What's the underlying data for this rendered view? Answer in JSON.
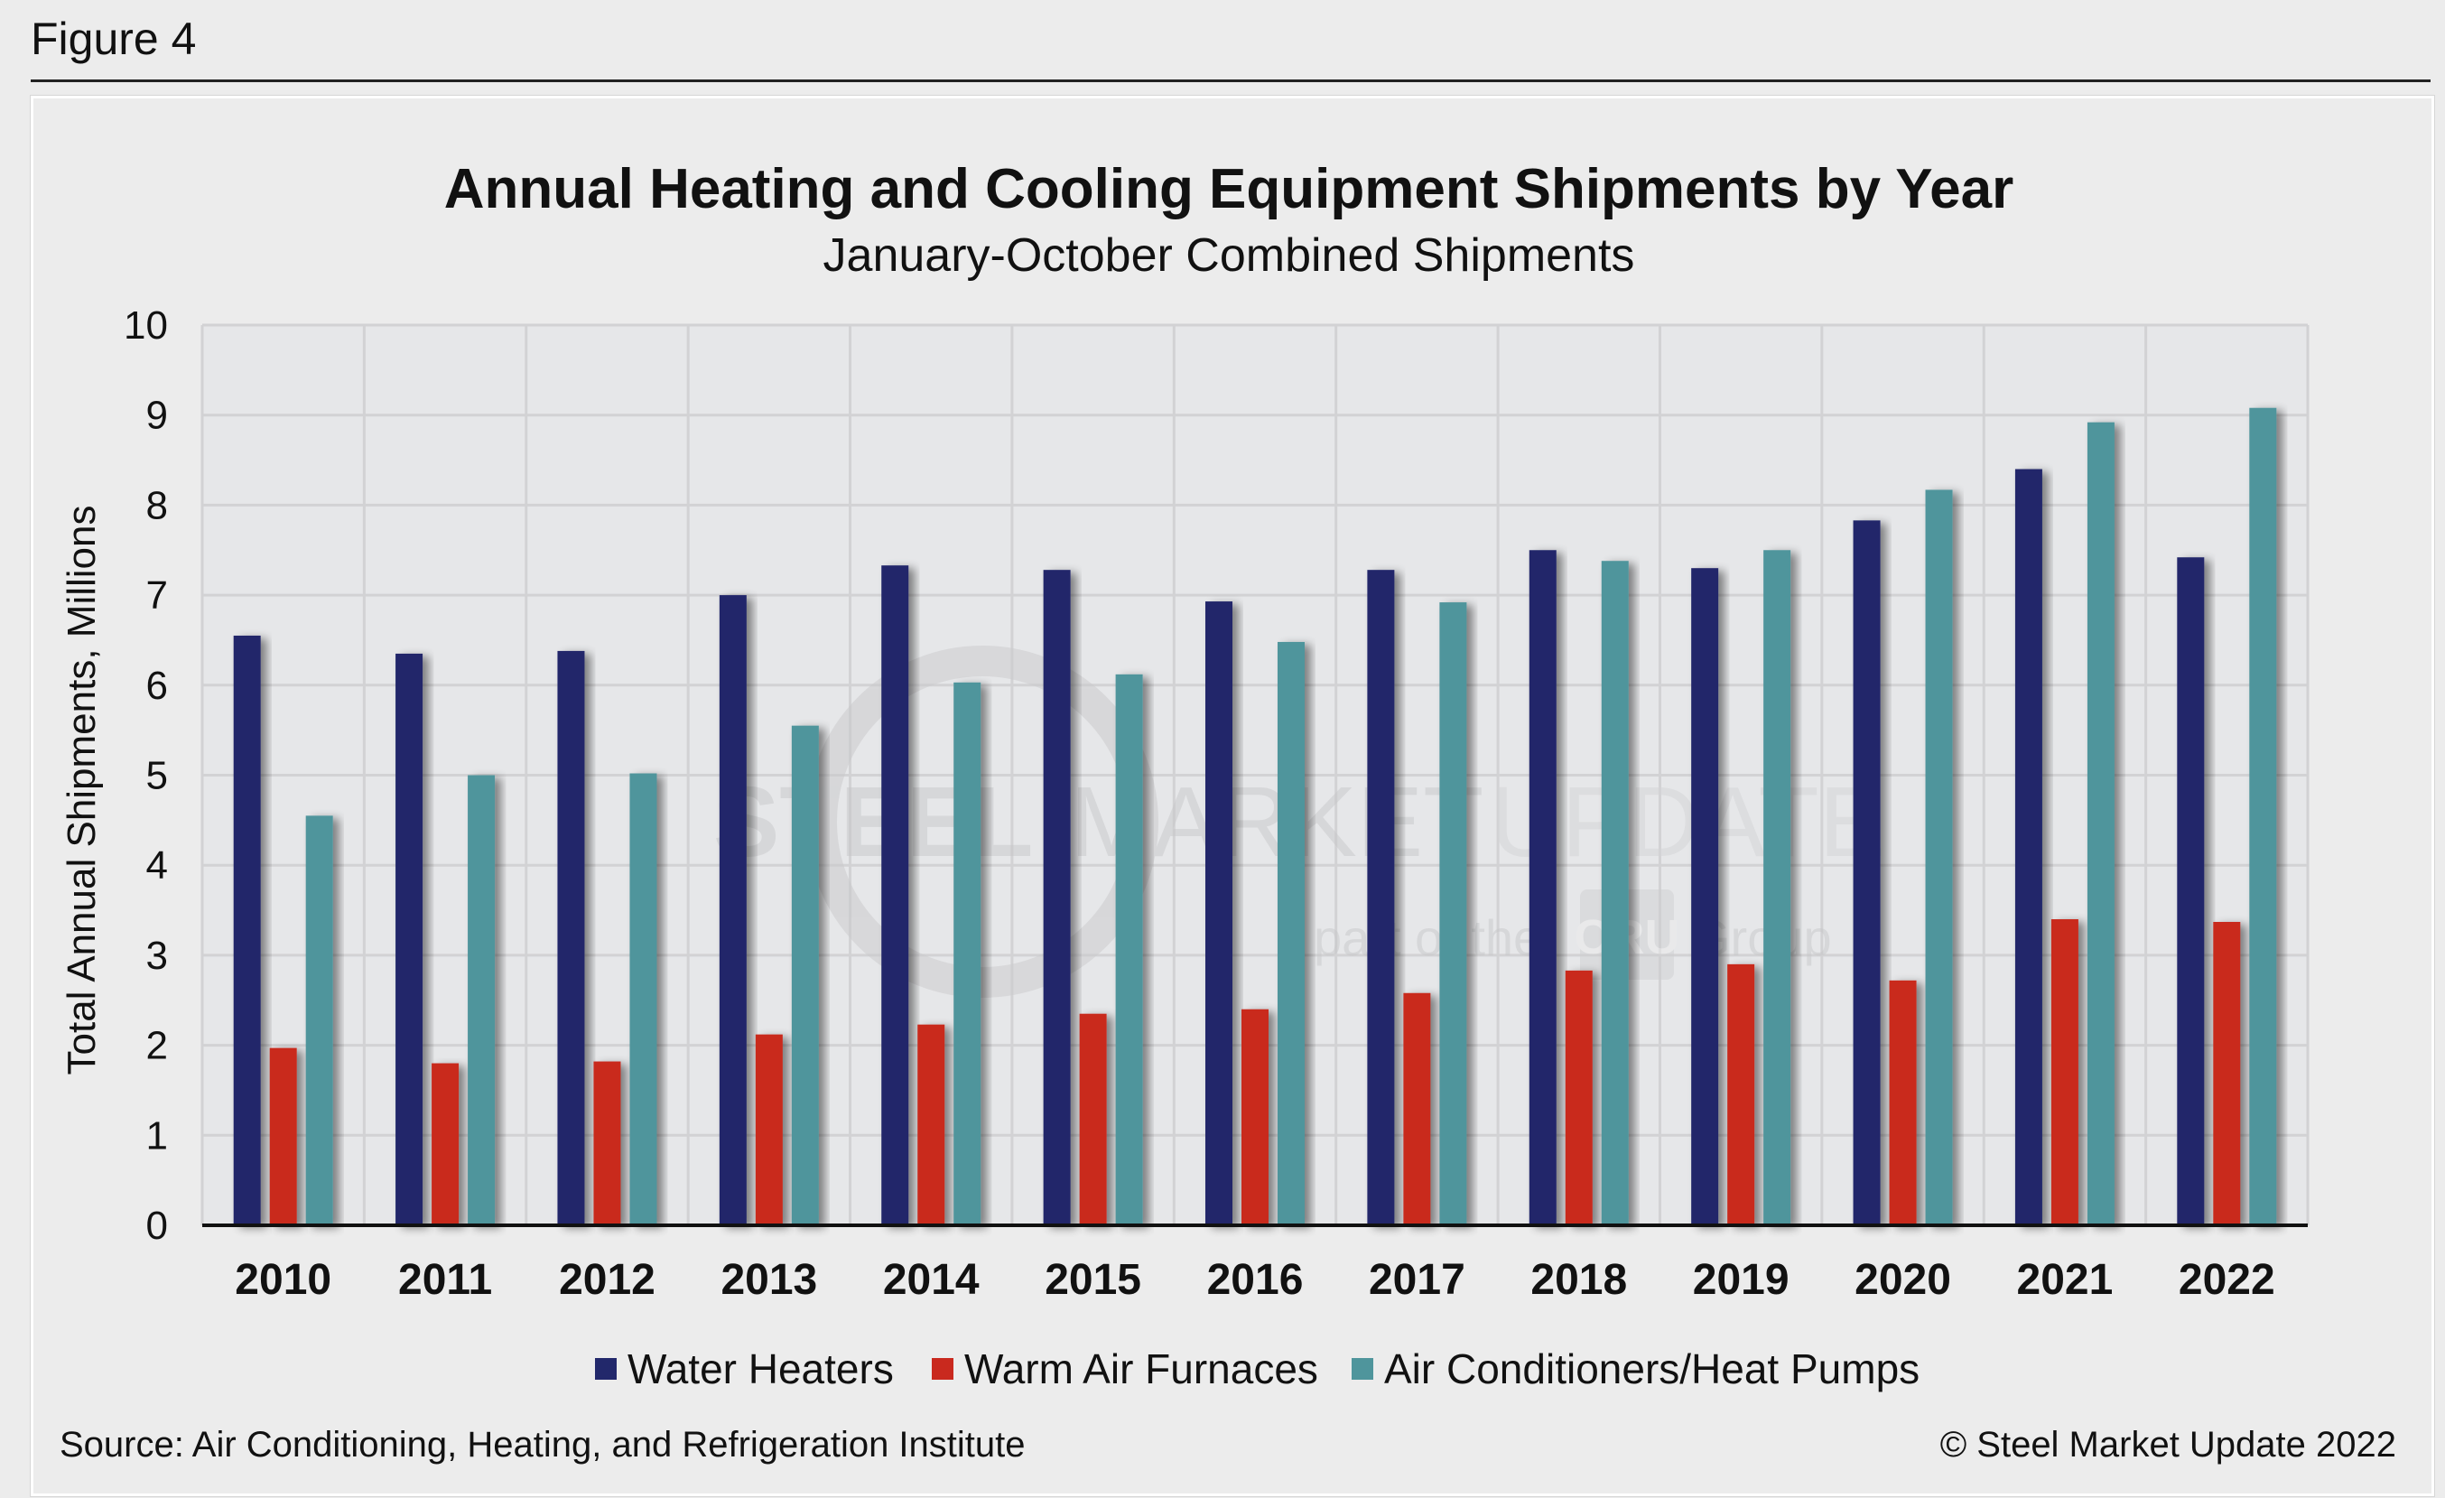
{
  "figure_label": "Figure 4",
  "source": "Source: Air Conditioning, Heating, and Refrigeration Institute",
  "copyright": "© Steel Market Update 2022",
  "watermark": {
    "brand_bold": "STEEL",
    "brand_mid": "MARKET",
    "brand_light": "UPDATE",
    "sub_left": "part of the",
    "sub_logo": "CRU",
    "sub_right": "Group"
  },
  "colors": {
    "water_heaters": "#22286b",
    "warm_air_furnaces": "#c9291e",
    "air_conditioners": "#4f959c",
    "plot_bg": "#e6e7e9",
    "grid": "#d2d2d4"
  },
  "chart_data": {
    "type": "bar",
    "title": "Annual Heating and Cooling Equipment Shipments by Year",
    "subtitle": "January-October Combined Shipments",
    "xlabel": "",
    "ylabel": "Total Annual Shipments, Millions",
    "ylim": [
      0,
      10
    ],
    "yticks": [
      0,
      1,
      2,
      3,
      4,
      5,
      6,
      7,
      8,
      9,
      10
    ],
    "grid": true,
    "legend_position": "bottom",
    "categories": [
      "2010",
      "2011",
      "2012",
      "2013",
      "2014",
      "2015",
      "2016",
      "2017",
      "2018",
      "2019",
      "2020",
      "2021",
      "2022"
    ],
    "series": [
      {
        "name": "Water Heaters",
        "color_key": "water_heaters",
        "values": [
          6.55,
          6.35,
          6.38,
          7.0,
          7.33,
          7.28,
          6.93,
          7.28,
          7.5,
          7.3,
          7.83,
          8.4,
          7.42
        ]
      },
      {
        "name": "Warm Air Furnaces",
        "color_key": "warm_air_furnaces",
        "values": [
          1.97,
          1.8,
          1.82,
          2.12,
          2.23,
          2.35,
          2.4,
          2.58,
          2.83,
          2.9,
          2.72,
          3.4,
          3.37
        ]
      },
      {
        "name": "Air Conditioners/Heat Pumps",
        "color_key": "air_conditioners",
        "values": [
          4.55,
          5.0,
          5.02,
          5.55,
          6.03,
          6.12,
          6.48,
          6.92,
          7.38,
          7.5,
          8.17,
          8.92,
          9.08
        ]
      }
    ]
  }
}
